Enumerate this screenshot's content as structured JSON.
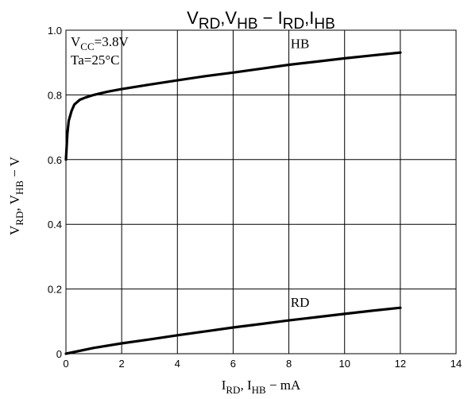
{
  "chart_data": {
    "type": "line",
    "title": {
      "main": "V",
      "parts": [
        {
          "base": "V",
          "sub": "RD"
        },
        {
          "sep": ","
        },
        {
          "base": "V",
          "sub": "HB"
        },
        {
          "sep": " − "
        },
        {
          "base": "I",
          "sub": "RD"
        },
        {
          "sep": ","
        },
        {
          "base": "I",
          "sub": "HB"
        }
      ]
    },
    "xlabel": {
      "parts": [
        {
          "base": "I",
          "sub": "RD"
        },
        {
          "sep": ", "
        },
        {
          "base": "I",
          "sub": "HB"
        },
        {
          "sep": " − mA"
        }
      ]
    },
    "ylabel": {
      "parts": [
        {
          "base": "V",
          "sub": "RD"
        },
        {
          "sep": ", "
        },
        {
          "base": "V",
          "sub": "HB"
        },
        {
          "sep": " − V"
        }
      ]
    },
    "xlim": [
      0,
      14
    ],
    "ylim": [
      0,
      1.0
    ],
    "xticks": [
      "0",
      "2",
      "4",
      "6",
      "8",
      "10",
      "12",
      "14"
    ],
    "yticks": [
      "0",
      "0.2",
      "0.4",
      "0.6",
      "0.8",
      "1.0"
    ],
    "grid": true,
    "conditions": [
      {
        "base": "V",
        "sub": "CC",
        "rest": "=3.8V"
      },
      {
        "base": "Ta",
        "sub": "",
        "rest": "=25°C"
      }
    ],
    "series": [
      {
        "name": "HB",
        "x": [
          0.0,
          0.05,
          0.1,
          0.2,
          0.3,
          0.5,
          0.7,
          1.0,
          1.5,
          2,
          3,
          4,
          5,
          6,
          7,
          8,
          9,
          10,
          11,
          12
        ],
        "y": [
          0.6,
          0.68,
          0.72,
          0.75,
          0.77,
          0.785,
          0.792,
          0.8,
          0.81,
          0.818,
          0.832,
          0.845,
          0.858,
          0.869,
          0.881,
          0.893,
          0.903,
          0.913,
          0.922,
          0.931
        ]
      },
      {
        "name": "RD",
        "x": [
          0,
          1,
          2,
          3,
          4,
          5,
          6,
          7,
          8,
          9,
          10,
          11,
          12
        ],
        "y": [
          0.0,
          0.018,
          0.032,
          0.044,
          0.057,
          0.069,
          0.081,
          0.092,
          0.103,
          0.113,
          0.123,
          0.133,
          0.142
        ]
      }
    ],
    "series_label_positions": [
      {
        "name": "HB",
        "x": 8.4,
        "y": 0.945
      },
      {
        "name": "RD",
        "x": 8.4,
        "y": 0.145
      }
    ]
  }
}
